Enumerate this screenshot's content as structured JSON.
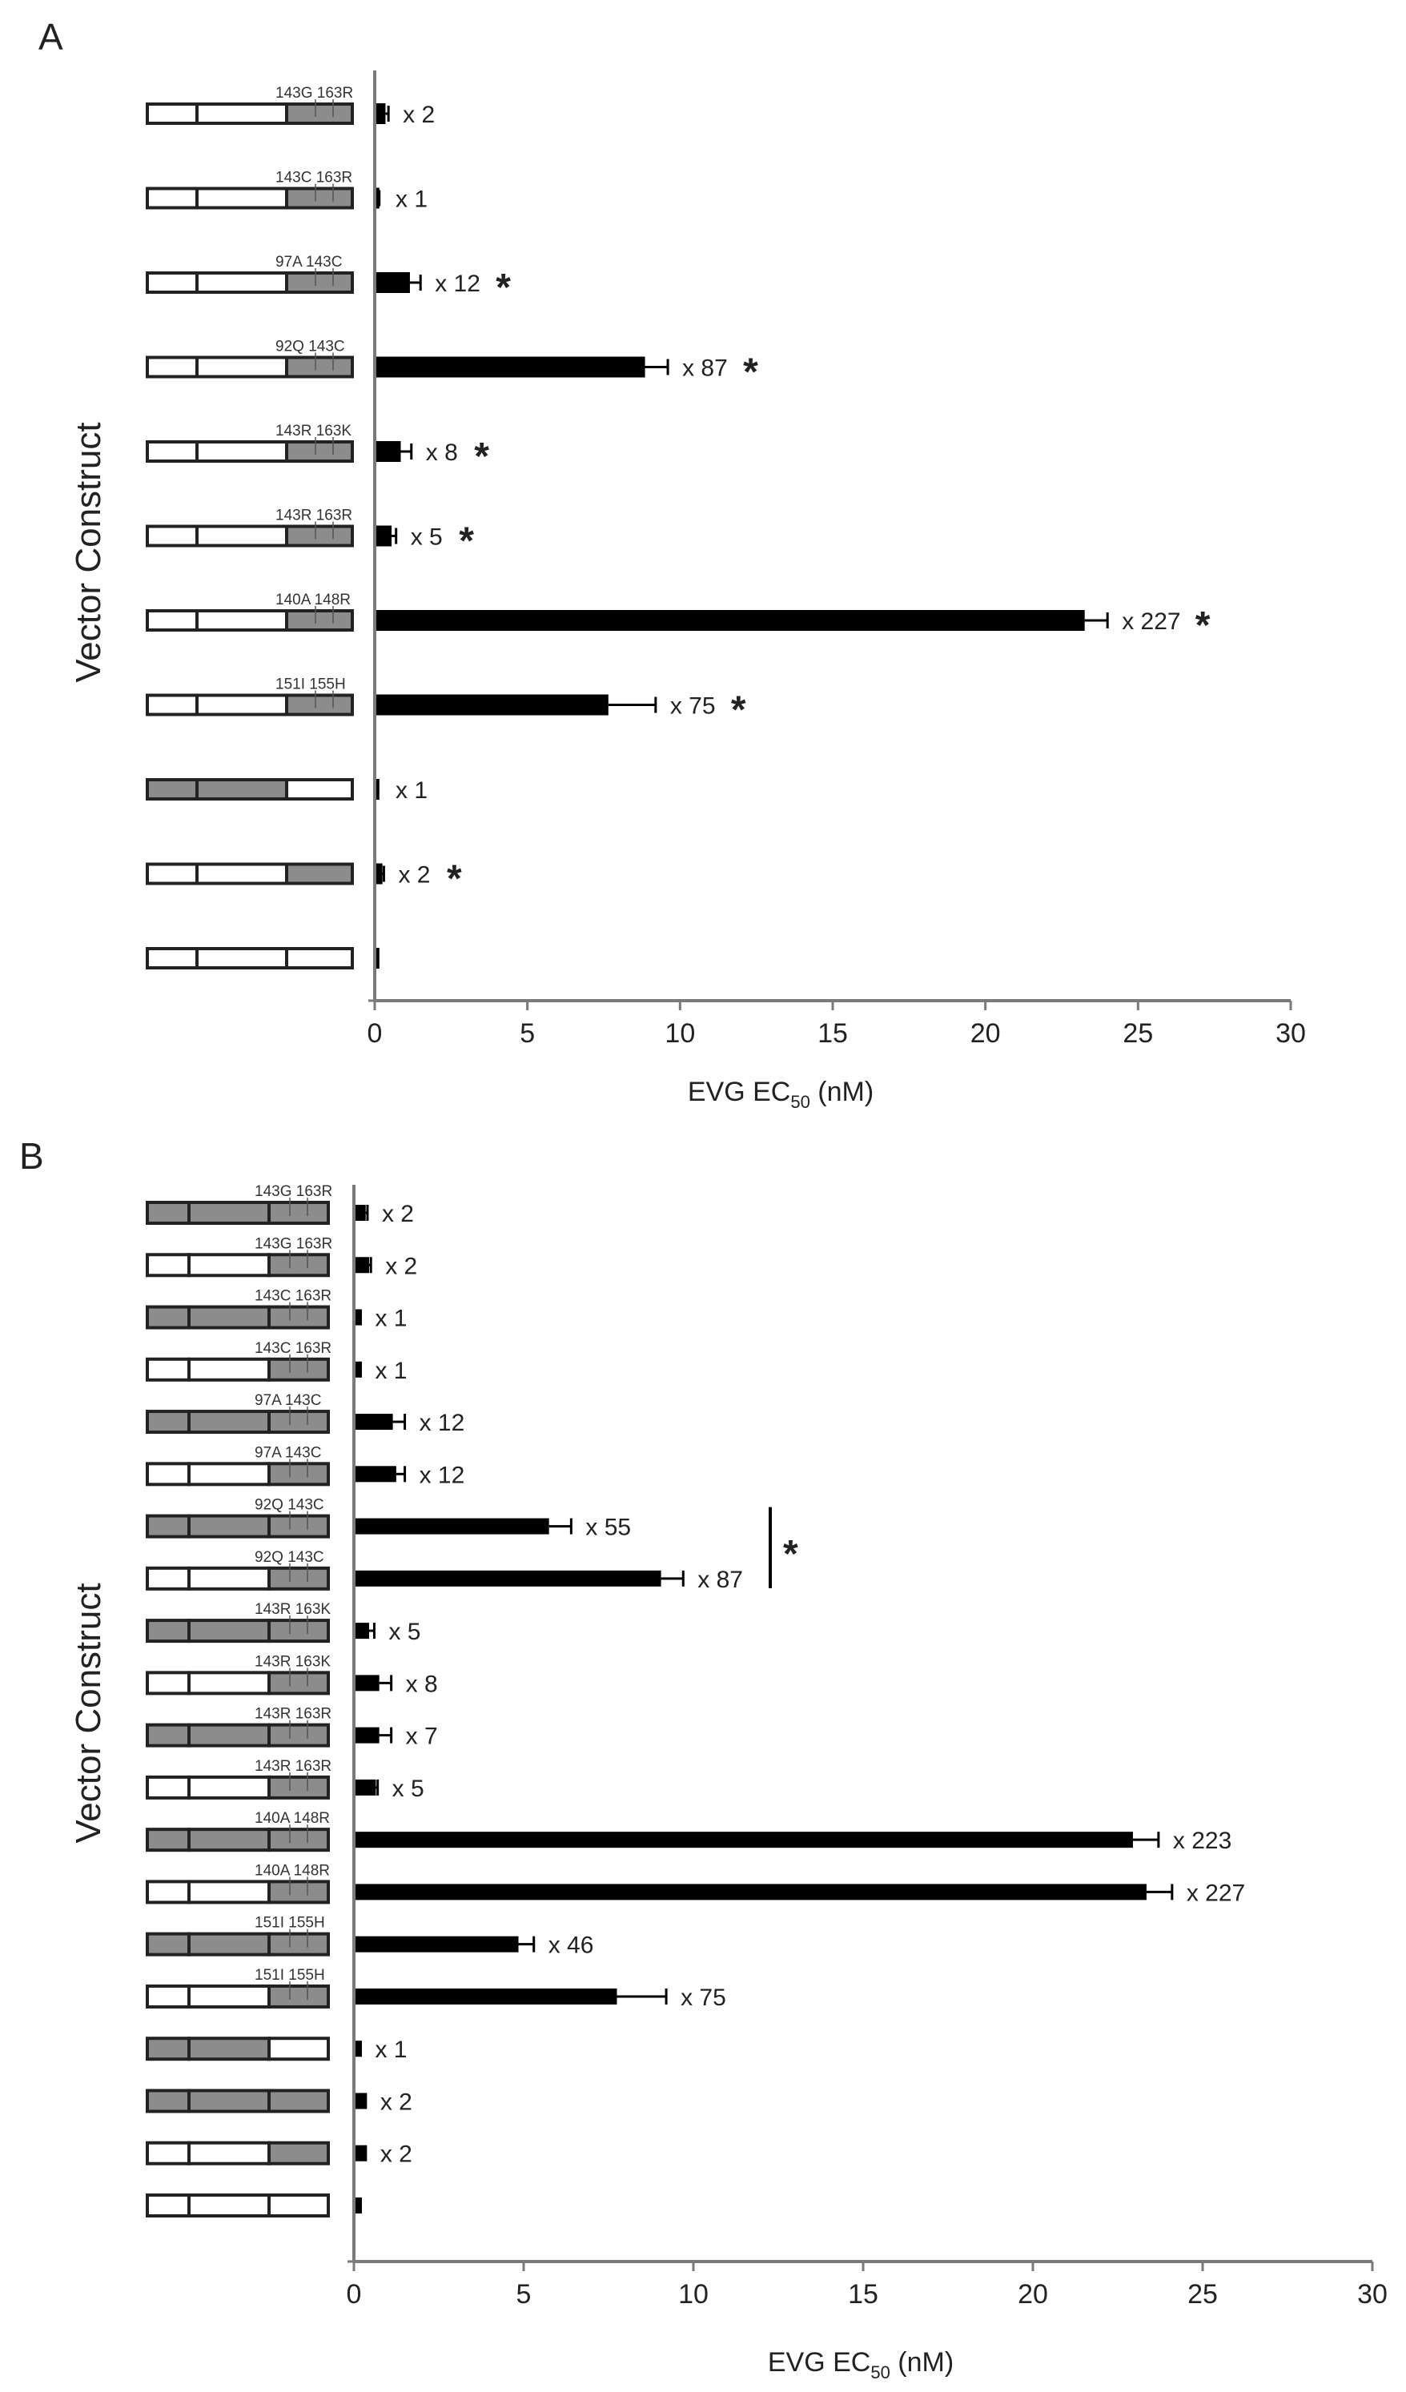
{
  "chart_data": [
    {
      "panel": "A",
      "type": "bar",
      "orientation": "horizontal",
      "ylabel": "Vector Construct",
      "xlabel": "EVG EC",
      "xlabel_sub": "50",
      "xlabel_unit": " (nM)",
      "xlim": [
        0,
        30
      ],
      "xticks": [
        "0",
        "5",
        "10",
        "15",
        "20",
        "25",
        "30"
      ],
      "rows": [
        {
          "construct": [
            "white",
            "white",
            "gray"
          ],
          "mutations": "143G  163R",
          "value": 0.3,
          "error": 0.15,
          "fold": "x 2",
          "sig": false
        },
        {
          "construct": [
            "white",
            "white",
            "gray"
          ],
          "mutations": "143C  163R",
          "value": 0.1,
          "error": 0.05,
          "fold": "x 1",
          "sig": false
        },
        {
          "construct": [
            "white",
            "white",
            "gray"
          ],
          "mutations": "97A  143C",
          "value": 1.1,
          "error": 0.4,
          "fold": "x 12",
          "sig": true
        },
        {
          "construct": [
            "white",
            "white",
            "gray"
          ],
          "mutations": "92Q  143C",
          "value": 8.8,
          "error": 0.8,
          "fold": "x 87",
          "sig": true
        },
        {
          "construct": [
            "white",
            "white",
            "gray"
          ],
          "mutations": "143R  163K",
          "value": 0.8,
          "error": 0.4,
          "fold": "x 8",
          "sig": true
        },
        {
          "construct": [
            "white",
            "white",
            "gray"
          ],
          "mutations": "143R  163R",
          "value": 0.5,
          "error": 0.2,
          "fold": "x 5",
          "sig": true
        },
        {
          "construct": [
            "white",
            "white",
            "gray"
          ],
          "mutations": "140A  148R",
          "value": 23.2,
          "error": 0.8,
          "fold": "x 227",
          "sig": true
        },
        {
          "construct": [
            "white",
            "white",
            "gray"
          ],
          "mutations": "151I 155H",
          "value": 7.6,
          "error": 1.6,
          "fold": "x 75",
          "sig": true
        },
        {
          "construct": [
            "gray",
            "gray",
            "white"
          ],
          "mutations": "",
          "value": 0.1,
          "error": 0.0,
          "fold": "x 1",
          "sig": false
        },
        {
          "construct": [
            "white",
            "white",
            "gray"
          ],
          "mutations": "",
          "value": 0.2,
          "error": 0.1,
          "fold": "x 2",
          "sig": true
        },
        {
          "construct": [
            "white",
            "white",
            "white"
          ],
          "mutations": "",
          "value": 0.1,
          "error": 0.0,
          "fold": "",
          "sig": false
        }
      ]
    },
    {
      "panel": "B",
      "type": "bar",
      "orientation": "horizontal",
      "ylabel": "Vector Construct",
      "xlabel": "EVG EC",
      "xlabel_sub": "50",
      "xlabel_unit": " (nM)",
      "xlim": [
        0,
        30
      ],
      "xticks": [
        "0",
        "5",
        "10",
        "15",
        "20",
        "25",
        "30"
      ],
      "bracket_sig": "*",
      "rows": [
        {
          "construct": [
            "gray",
            "gray",
            "gray"
          ],
          "mutations": "143G  163R",
          "value": 0.3,
          "error": 0.1,
          "fold": "x 2"
        },
        {
          "construct": [
            "white",
            "white",
            "gray"
          ],
          "mutations": "143G  163R",
          "value": 0.4,
          "error": 0.1,
          "fold": "x 2"
        },
        {
          "construct": [
            "gray",
            "gray",
            "gray"
          ],
          "mutations": "143C  163R",
          "value": 0.15,
          "error": 0.05,
          "fold": "x 1"
        },
        {
          "construct": [
            "white",
            "white",
            "gray"
          ],
          "mutations": "143C  163R",
          "value": 0.15,
          "error": 0.05,
          "fold": "x 1"
        },
        {
          "construct": [
            "gray",
            "gray",
            "gray"
          ],
          "mutations": "97A  143C",
          "value": 1.1,
          "error": 0.4,
          "fold": "x 12"
        },
        {
          "construct": [
            "white",
            "white",
            "gray"
          ],
          "mutations": "97A  143C",
          "value": 1.2,
          "error": 0.3,
          "fold": "x 12"
        },
        {
          "construct": [
            "gray",
            "gray",
            "gray"
          ],
          "mutations": "92Q  143C",
          "value": 5.7,
          "error": 0.7,
          "fold": "x 55"
        },
        {
          "construct": [
            "white",
            "white",
            "gray"
          ],
          "mutations": "92Q  143C",
          "value": 9.0,
          "error": 0.7,
          "fold": "x 87"
        },
        {
          "construct": [
            "gray",
            "gray",
            "gray"
          ],
          "mutations": "143R  163K",
          "value": 0.4,
          "error": 0.2,
          "fold": "x 5"
        },
        {
          "construct": [
            "white",
            "white",
            "gray"
          ],
          "mutations": "143R  163K",
          "value": 0.7,
          "error": 0.4,
          "fold": "x 8"
        },
        {
          "construct": [
            "gray",
            "gray",
            "gray"
          ],
          "mutations": "143R  163R",
          "value": 0.7,
          "error": 0.4,
          "fold": "x 7"
        },
        {
          "construct": [
            "white",
            "white",
            "gray"
          ],
          "mutations": "143R  163R",
          "value": 0.6,
          "error": 0.1,
          "fold": "x 5"
        },
        {
          "construct": [
            "gray",
            "gray",
            "gray"
          ],
          "mutations": "140A  148R",
          "value": 22.9,
          "error": 0.8,
          "fold": "x 223"
        },
        {
          "construct": [
            "white",
            "white",
            "gray"
          ],
          "mutations": "140A  148R",
          "value": 23.3,
          "error": 0.8,
          "fold": "x 227"
        },
        {
          "construct": [
            "gray",
            "gray",
            "gray"
          ],
          "mutations": "151I 155H",
          "value": 4.8,
          "error": 0.5,
          "fold": "x 46"
        },
        {
          "construct": [
            "white",
            "white",
            "gray"
          ],
          "mutations": "151I 155H",
          "value": 7.7,
          "error": 1.5,
          "fold": "x 75"
        },
        {
          "construct": [
            "gray",
            "gray",
            "white"
          ],
          "mutations": "",
          "value": 0.15,
          "error": 0.05,
          "fold": "x 1"
        },
        {
          "construct": [
            "gray",
            "gray",
            "gray"
          ],
          "mutations": "",
          "value": 0.3,
          "error": 0.05,
          "fold": "x 2"
        },
        {
          "construct": [
            "white",
            "white",
            "gray"
          ],
          "mutations": "",
          "value": 0.3,
          "error": 0.05,
          "fold": "x 2"
        },
        {
          "construct": [
            "white",
            "white",
            "white"
          ],
          "mutations": "",
          "value": 0.15,
          "error": 0.05,
          "fold": ""
        }
      ]
    }
  ],
  "colors": {
    "bar": "#000000",
    "axis": "#7a7a7a",
    "segment_gray": "#8c8c8c",
    "segment_white": "#ffffff"
  },
  "significance_symbol": "*"
}
